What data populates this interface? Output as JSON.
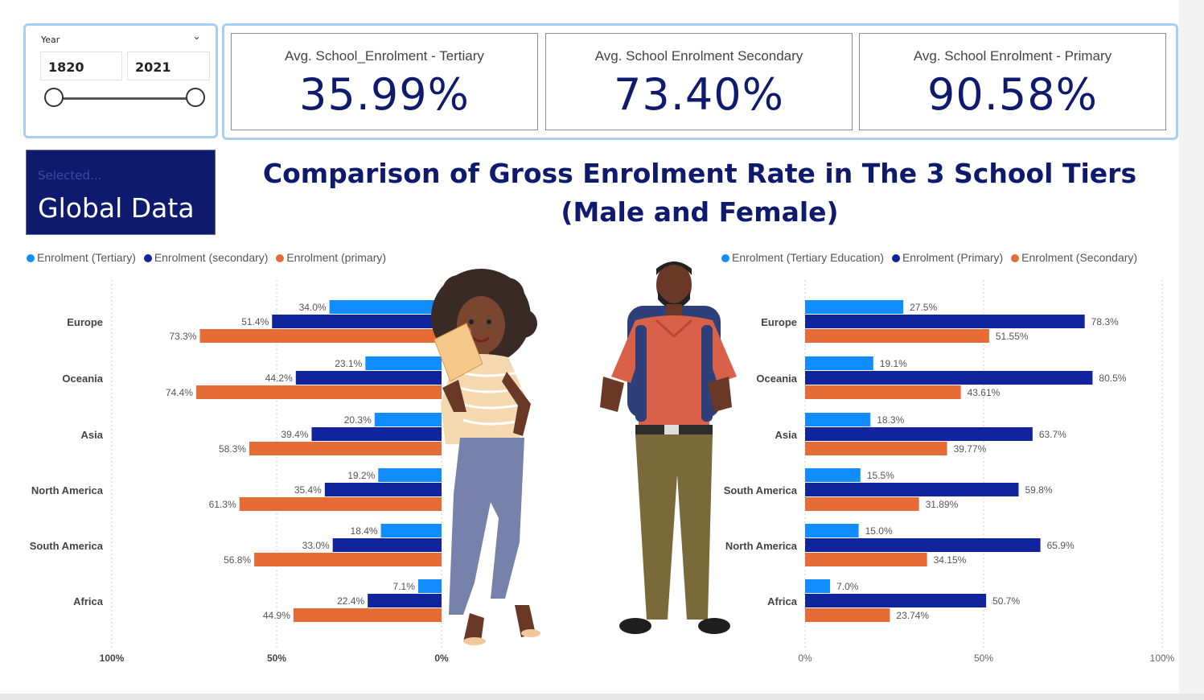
{
  "slicer": {
    "title": "Year",
    "from": "1820",
    "to": "2021"
  },
  "kpis": [
    {
      "label": "Avg. School_Enrolment - Tertiary",
      "value": "35.99%"
    },
    {
      "label": "Avg. School Enrolment Secondary",
      "value": "73.40%"
    },
    {
      "label": "Avg. School Enrolment - Primary",
      "value": "90.58%"
    }
  ],
  "selected": {
    "caption": "Selected...",
    "value": "Global Data"
  },
  "headline": {
    "line1": "Comparison of Gross Enrolment Rate in The 3 School Tiers",
    "line2": "(Male and Female)"
  },
  "colors": {
    "tertiary": "#118dff",
    "secondary_or_primary_dark": "#12239e",
    "orange": "#e66c37",
    "navy": "#0e1a6e"
  },
  "chart_data": [
    {
      "type": "bar",
      "orientation": "horizontal-reversed",
      "legend": [
        "Enrolment (Tertiary)",
        "Enrolment (secondary)",
        "Enrolment (primary)"
      ],
      "categories": [
        "Europe",
        "Oceania",
        "Asia",
        "North America",
        "South America",
        "Africa"
      ],
      "series": [
        {
          "name": "Enrolment (Tertiary)",
          "values": [
            34.0,
            23.1,
            20.3,
            19.2,
            18.4,
            7.1
          ],
          "labels": [
            "34.0%",
            "23.1%",
            "20.3%",
            "19.2%",
            "18.4%",
            "7.1%"
          ]
        },
        {
          "name": "Enrolment (secondary)",
          "values": [
            51.4,
            44.2,
            39.4,
            35.4,
            33.0,
            22.4
          ],
          "labels": [
            "51.4%",
            "44.2%",
            "39.4%",
            "35.4%",
            "33.0%",
            "22.4%"
          ]
        },
        {
          "name": "Enrolment (primary)",
          "values": [
            73.3,
            74.4,
            58.3,
            61.3,
            56.8,
            44.9
          ],
          "labels": [
            "73.3%",
            "74.4%",
            "58.3%",
            "61.3%",
            "56.8%",
            "44.9%"
          ]
        }
      ],
      "ticks": [
        "100%",
        "50%",
        "0%"
      ],
      "xlim": [
        0,
        100
      ]
    },
    {
      "type": "bar",
      "orientation": "horizontal",
      "legend": [
        "Enrolment (Tertiary Education)",
        "Enrolment (Primary)",
        "Enrolment (Secondary)"
      ],
      "categories": [
        "Europe",
        "Oceania",
        "Asia",
        "South America",
        "North America",
        "Africa"
      ],
      "series": [
        {
          "name": "Enrolment (Tertiary Education)",
          "values": [
            27.5,
            19.1,
            18.3,
            15.5,
            15.0,
            7.0
          ],
          "labels": [
            "27.5%",
            "19.1%",
            "18.3%",
            "15.5%",
            "15.0%",
            "7.0%"
          ]
        },
        {
          "name": "Enrolment (Primary)",
          "values": [
            78.3,
            80.5,
            63.7,
            59.8,
            65.9,
            50.7
          ],
          "labels": [
            "78.3%",
            "80.5%",
            "63.7%",
            "59.8%",
            "65.9%",
            "50.7%"
          ]
        },
        {
          "name": "Enrolment (Secondary)",
          "values": [
            51.55,
            43.61,
            39.77,
            31.89,
            34.15,
            23.74
          ],
          "labels": [
            "51.55%",
            "43.61%",
            "39.77%",
            "31.89%",
            "34.15%",
            "23.74%"
          ]
        }
      ],
      "ticks": [
        "0%",
        "50%",
        "100%"
      ],
      "xlim": [
        0,
        100
      ]
    }
  ]
}
